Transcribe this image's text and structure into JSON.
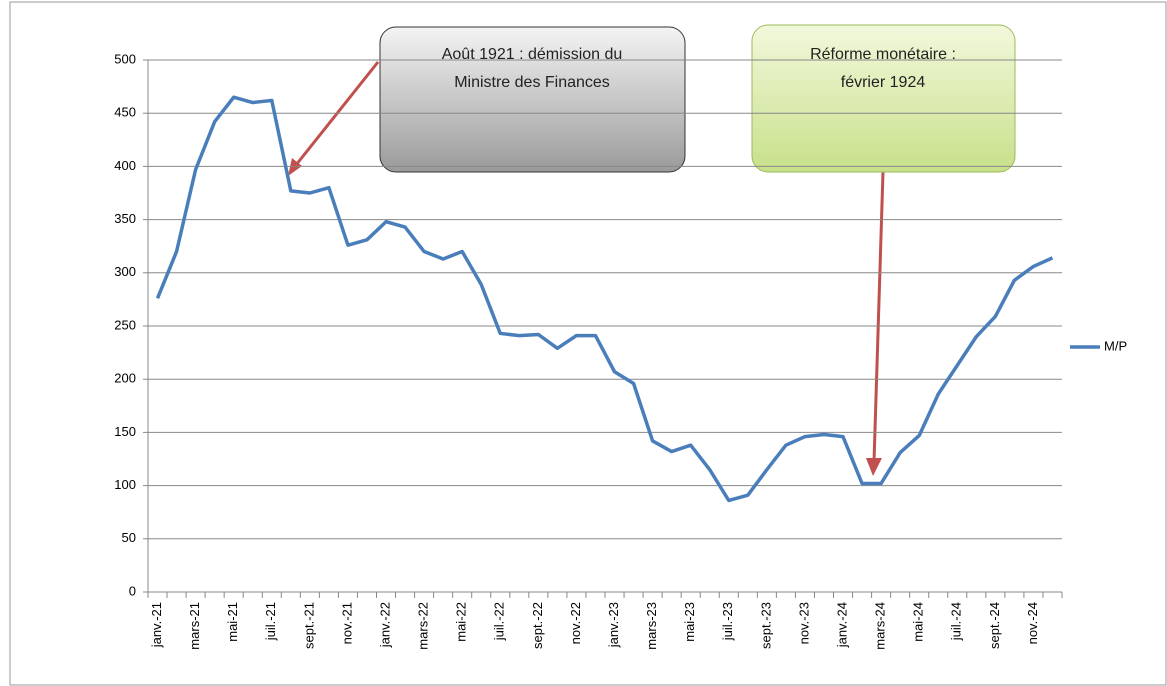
{
  "chart_data": {
    "type": "line",
    "categories": [
      "janv.-21",
      null,
      "mars-21",
      null,
      "mai-21",
      null,
      "juil.-21",
      null,
      "sept.-21",
      null,
      "nov.-21",
      null,
      "janv.-22",
      null,
      "mars-22",
      null,
      "mai-22",
      null,
      "juil.-22",
      null,
      "sept.-22",
      null,
      "nov.-22",
      null,
      "janv.-23",
      null,
      "mars-23",
      null,
      "mai-23",
      null,
      "juil.-23",
      null,
      "sept.-23",
      null,
      "nov.-23",
      null,
      "janv.-24",
      null,
      "mars-24",
      null,
      "mai-24",
      null,
      "juil.-24",
      null,
      "sept.-24",
      null,
      "nov.-24",
      null
    ],
    "series": [
      {
        "name": "M/P",
        "color": "#4a7ebb",
        "values": [
          276,
          320,
          397,
          442,
          465,
          460,
          462,
          377,
          375,
          380,
          326,
          331,
          348,
          343,
          320,
          313,
          320,
          289,
          243,
          241,
          242,
          229,
          241,
          241,
          207,
          196,
          142,
          132,
          138,
          115,
          86,
          91,
          115,
          138,
          146,
          148,
          146,
          102,
          102,
          131,
          147,
          186,
          213,
          240,
          259,
          293,
          306,
          314
        ]
      }
    ],
    "ylim": [
      0,
      500
    ],
    "yticks": [
      0,
      50,
      100,
      150,
      200,
      250,
      300,
      350,
      400,
      450,
      500
    ],
    "grid": true,
    "legend": "right",
    "annotations": [
      {
        "lines": [
          "Août 1921 : démission du",
          "Ministre des Finances"
        ]
      },
      {
        "lines": [
          "Réforme monétaire :",
          "février 1924"
        ]
      }
    ]
  }
}
